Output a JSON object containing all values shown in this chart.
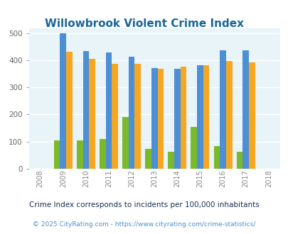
{
  "title": "Willowbrook Violent Crime Index",
  "years": [
    2008,
    2009,
    2010,
    2011,
    2012,
    2013,
    2014,
    2015,
    2016,
    2017,
    2018
  ],
  "bar_years": [
    2009,
    2010,
    2011,
    2012,
    2013,
    2014,
    2015,
    2016,
    2017
  ],
  "willowbrook": [
    105,
    105,
    110,
    190,
    73,
    62,
    155,
    83,
    62
  ],
  "illinois": [
    500,
    435,
    430,
    415,
    373,
    370,
    383,
    437,
    437
  ],
  "national": [
    432,
    405,
    387,
    387,
    368,
    376,
    383,
    397,
    394
  ],
  "color_willowbrook": "#7aba2a",
  "color_illinois": "#4d8fd4",
  "color_national": "#f5a623",
  "bg_color": "#e8f4f8",
  "title_color": "#1a6699",
  "subtitle": "Crime Index corresponds to incidents per 100,000 inhabitants",
  "footer": "© 2025 CityRating.com - https://www.cityrating.com/crime-statistics/",
  "ylim": [
    0,
    520
  ],
  "yticks": [
    0,
    100,
    200,
    300,
    400,
    500
  ],
  "bar_width": 0.27,
  "subtitle_color": "#1a3050",
  "footer_color": "#4d8fd4"
}
